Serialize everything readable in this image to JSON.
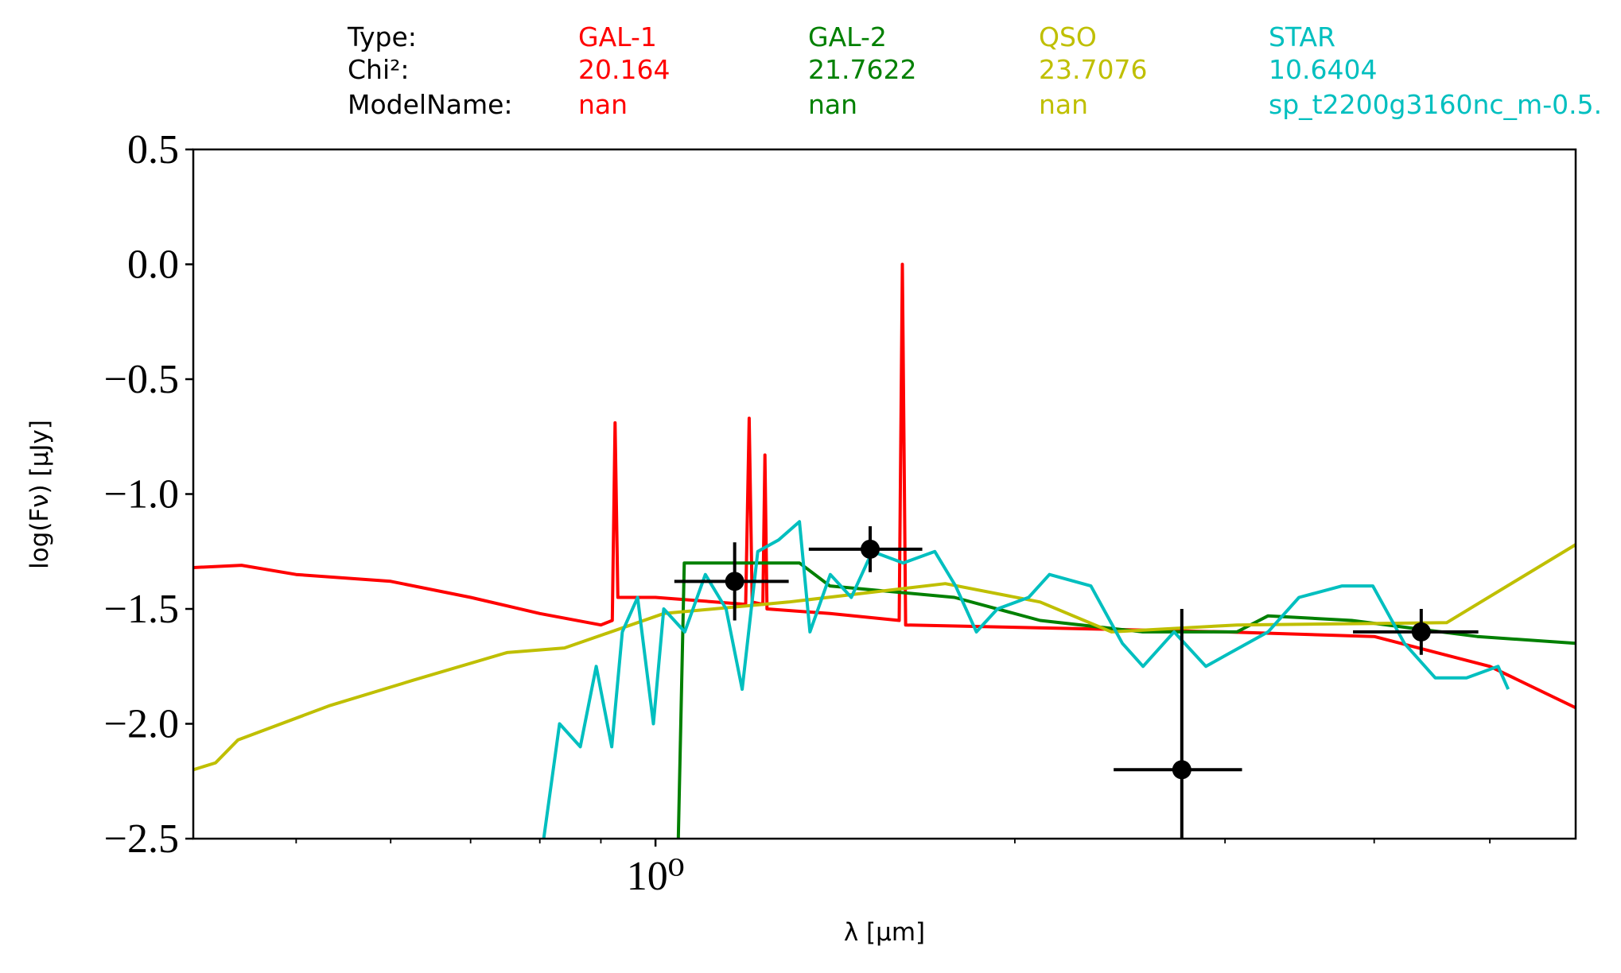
{
  "chart_data": {
    "type": "line",
    "xlabel": "λ [μm]",
    "ylabel": "log(Fν) [μJy]",
    "xscale": "log",
    "xlim": [
      0.41,
      5.9
    ],
    "ylim": [
      -2.5,
      0.5
    ],
    "xticks": [
      {
        "value": 1,
        "label": "10⁰"
      }
    ],
    "xminor_ticks": [
      0.5,
      0.6,
      0.7,
      0.8,
      0.9,
      2,
      3,
      4,
      5
    ],
    "yticks": [
      0.5,
      {
        "value": 0,
        "label": "0.0"
      },
      {
        "value": -0.5,
        "label": "−0.5"
      },
      {
        "value": -1,
        "label": "−1.0"
      },
      {
        "value": -1.5,
        "label": "−1.5"
      },
      {
        "value": -2,
        "label": "−2.0"
      },
      {
        "value": -2.5,
        "label": "−2.5"
      }
    ],
    "header_labels": [
      "Type:",
      "Chi²:",
      "ModelName:"
    ],
    "series": [
      {
        "name": "GAL-1",
        "color": "#ff0000",
        "chi2": 20.164,
        "model": "nan",
        "x": [
          0.41,
          0.45,
          0.5,
          0.6,
          0.7,
          0.8,
          0.9,
          0.92,
          0.925,
          0.93,
          1.0,
          1.19,
          1.198,
          1.205,
          1.23,
          1.235,
          1.24,
          1.4,
          1.6,
          1.61,
          1.62,
          2.0,
          3.0,
          4.0,
          5.0,
          5.9
        ],
        "y": [
          -1.32,
          -1.31,
          -1.35,
          -1.38,
          -1.45,
          -1.52,
          -1.57,
          -1.55,
          -0.69,
          -1.45,
          -1.45,
          -1.48,
          -0.67,
          -1.47,
          -1.48,
          -0.83,
          -1.5,
          -1.52,
          -1.55,
          0.0,
          -1.57,
          -1.58,
          -1.6,
          -1.62,
          -1.75,
          -1.93
        ]
      },
      {
        "name": "GAL-2",
        "color": "#008000",
        "chi2": 21.7622,
        "model": "nan",
        "x": [
          1.045,
          1.057,
          1.32,
          1.4,
          1.78,
          2.1,
          2.56,
          3.07,
          3.26,
          3.83,
          4.88,
          5.9
        ],
        "y": [
          -2.5,
          -1.3,
          -1.3,
          -1.4,
          -1.45,
          -1.55,
          -1.6,
          -1.6,
          -1.53,
          -1.55,
          -1.62,
          -1.65
        ]
      },
      {
        "name": "QSO",
        "color": "#bfbf00",
        "chi2": 23.7076,
        "model": "nan",
        "x": [
          0.41,
          0.428,
          0.447,
          0.534,
          0.627,
          0.751,
          0.839,
          1.016,
          1.293,
          1.749,
          2.1,
          2.41,
          3.07,
          4.6,
          5.9
        ],
        "y": [
          -2.2,
          -2.17,
          -2.07,
          -1.92,
          -1.81,
          -1.69,
          -1.67,
          -1.52,
          -1.47,
          -1.39,
          -1.47,
          -1.6,
          -1.57,
          -1.56,
          -1.22
        ]
      },
      {
        "name": "STAR",
        "color": "#00bfbf",
        "chi2": 10.6404,
        "model": "sp_t2200g3160nc_m-0.5.",
        "x": [
          0.806,
          0.831,
          0.865,
          0.892,
          0.919,
          0.938,
          0.966,
          0.996,
          1.016,
          1.058,
          1.101,
          1.146,
          1.182,
          1.218,
          1.268,
          1.32,
          1.347,
          1.401,
          1.459,
          1.519,
          1.613,
          1.714,
          1.784,
          1.857,
          1.934,
          2.054,
          2.138,
          2.316,
          2.461,
          2.561,
          2.719,
          2.891,
          3.009,
          3.26,
          3.46,
          3.76,
          3.99,
          4.24,
          4.5,
          4.78,
          5.08,
          5.18
        ],
        "y": [
          -2.5,
          -2.0,
          -2.1,
          -1.75,
          -2.1,
          -1.6,
          -1.45,
          -2.0,
          -1.5,
          -1.6,
          -1.35,
          -1.5,
          -1.85,
          -1.25,
          -1.2,
          -1.12,
          -1.6,
          -1.35,
          -1.45,
          -1.25,
          -1.3,
          -1.25,
          -1.4,
          -1.6,
          -1.5,
          -1.45,
          -1.35,
          -1.4,
          -1.65,
          -1.75,
          -1.6,
          -1.75,
          -1.7,
          -1.6,
          -1.45,
          -1.4,
          -1.4,
          -1.65,
          -1.8,
          -1.8,
          -1.75,
          -1.85
        ]
      }
    ],
    "points": {
      "color": "#000000",
      "x": [
        1.165,
        1.513,
        2.76,
        4.38
      ],
      "y": [
        -1.38,
        -1.24,
        -2.2,
        -1.6
      ],
      "x_low": [
        1.037,
        1.344,
        2.42,
        3.84
      ],
      "x_high": [
        1.293,
        1.673,
        3.1,
        4.89
      ],
      "yerr": [
        0.17,
        0.1,
        0.7,
        0.1
      ]
    }
  }
}
